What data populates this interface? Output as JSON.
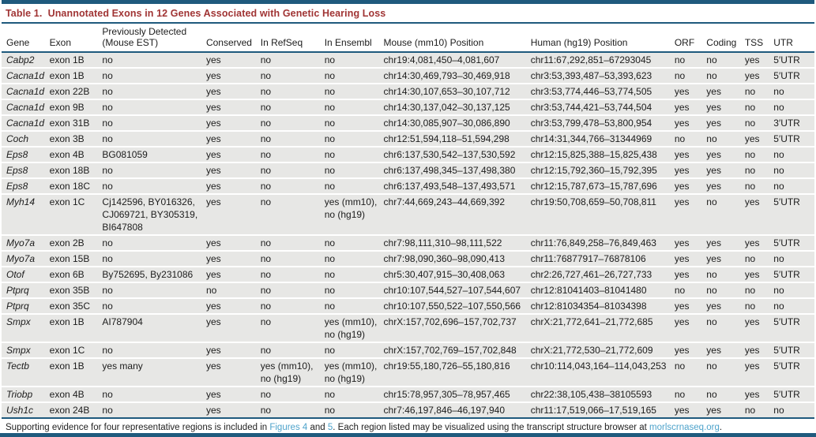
{
  "title": "Table 1.  Unannotated Exons in 12 Genes Associated with Genetic Hearing Loss",
  "colors": {
    "accent_navy": "#1f5a7d",
    "title_red": "#a03434",
    "link_blue": "#4ea3cb",
    "row_gray": "#e7e7e5"
  },
  "table": {
    "columns": [
      "Gene",
      "Exon",
      "Previously Detected\n(Mouse EST)",
      "Conserved",
      "In RefSeq",
      "In Ensembl",
      "Mouse (mm10) Position",
      "Human (hg19) Position",
      "ORF",
      "Coding",
      "TSS",
      "UTR"
    ],
    "rows": [
      [
        "Cabp2",
        "exon 1B",
        "no",
        "yes",
        "no",
        "no",
        "chr19:4,081,450–4,081,607",
        "chr11:67,292,851–67293045",
        "no",
        "no",
        "yes",
        "5′UTR"
      ],
      [
        "Cacna1d",
        "exon 1B",
        "no",
        "yes",
        "no",
        "no",
        "chr14:30,469,793–30,469,918",
        "chr3:53,393,487–53,393,623",
        "no",
        "no",
        "yes",
        "5′UTR"
      ],
      [
        "Cacna1d",
        "exon 22B",
        "no",
        "yes",
        "no",
        "no",
        "chr14:30,107,653–30,107,712",
        "chr3:53,774,446–53,774,505",
        "yes",
        "yes",
        "no",
        "no"
      ],
      [
        "Cacna1d",
        "exon 9B",
        "no",
        "yes",
        "no",
        "no",
        "chr14:30,137,042–30,137,125",
        "chr3:53,744,421–53,744,504",
        "yes",
        "yes",
        "no",
        "no"
      ],
      [
        "Cacna1d",
        "exon 31B",
        "no",
        "yes",
        "no",
        "no",
        "chr14:30,085,907–30,086,890",
        "chr3:53,799,478–53,800,954",
        "yes",
        "yes",
        "no",
        "3′UTR"
      ],
      [
        "Coch",
        "exon 3B",
        "no",
        "yes",
        "no",
        "no",
        "chr12:51,594,118–51,594,298",
        "chr14:31,344,766–31344969",
        "no",
        "no",
        "yes",
        "5′UTR"
      ],
      [
        "Eps8",
        "exon 4B",
        "BG081059",
        "yes",
        "no",
        "no",
        "chr6:137,530,542–137,530,592",
        "chr12:15,825,388–15,825,438",
        "yes",
        "yes",
        "no",
        "no"
      ],
      [
        "Eps8",
        "exon 18B",
        "no",
        "yes",
        "no",
        "no",
        "chr6:137,498,345–137,498,380",
        "chr12:15,792,360–15,792,395",
        "yes",
        "yes",
        "no",
        "no"
      ],
      [
        "Eps8",
        "exon 18C",
        "no",
        "yes",
        "no",
        "no",
        "chr6:137,493,548–137,493,571",
        "chr12:15,787,673–15,787,696",
        "yes",
        "yes",
        "no",
        "no"
      ],
      [
        "Myh14",
        "exon 1C",
        "Cj142596, BY016326, CJ069721, BY305319, BI647808",
        "yes",
        "no",
        "yes (mm10), no (hg19)",
        "chr7:44,669,243–44,669,392",
        "chr19:50,708,659–50,708,811",
        "yes",
        "no",
        "yes",
        "5′UTR"
      ],
      [
        "Myo7a",
        "exon 2B",
        "no",
        "yes",
        "no",
        "no",
        "chr7:98,111,310–98,111,522",
        "chr11:76,849,258–76,849,463",
        "yes",
        "yes",
        "yes",
        "5′UTR"
      ],
      [
        "Myo7a",
        "exon 15B",
        "no",
        "yes",
        "no",
        "no",
        "chr7:98,090,360–98,090,413",
        "chr11:76877917–76878106",
        "yes",
        "yes",
        "no",
        "no"
      ],
      [
        "Otof",
        "exon 6B",
        "By752695, By231086",
        "yes",
        "no",
        "no",
        "chr5:30,407,915–30,408,063",
        "chr2:26,727,461–26,727,733",
        "yes",
        "no",
        "yes",
        "5′UTR"
      ],
      [
        "Ptprq",
        "exon 35B",
        "no",
        "no",
        "no",
        "no",
        "chr10:107,544,527–107,544,607",
        "chr12:81041403–81041480",
        "no",
        "no",
        "no",
        "no"
      ],
      [
        "Ptprq",
        "exon 35C",
        "no",
        "yes",
        "no",
        "no",
        "chr10:107,550,522–107,550,566",
        "chr12:81034354–81034398",
        "yes",
        "yes",
        "no",
        "no"
      ],
      [
        "Smpx",
        "exon 1B",
        "AI787904",
        "yes",
        "no",
        "yes (mm10), no (hg19)",
        "chrX:157,702,696–157,702,737",
        "chrX:21,772,641–21,772,685",
        "yes",
        "no",
        "yes",
        "5′UTR"
      ],
      [
        "Smpx",
        "exon 1C",
        "no",
        "yes",
        "no",
        "no",
        "chrX:157,702,769–157,702,848",
        "chrX:21,772,530–21,772,609",
        "yes",
        "yes",
        "yes",
        "5′UTR"
      ],
      [
        "Tectb",
        "exon 1B",
        "yes many",
        "yes",
        "yes (mm10), no (hg19)",
        "yes (mm10), no (hg19)",
        "chr19:55,180,726–55,180,816",
        "chr10:114,043,164–114,043,253",
        "no",
        "no",
        "yes",
        "5′UTR"
      ],
      [
        "Triobp",
        "exon 4B",
        "no",
        "yes",
        "no",
        "no",
        "chr15:78,957,305–78,957,465",
        "chr22:38,105,438–38105593",
        "no",
        "no",
        "yes",
        "5′UTR"
      ],
      [
        "Ush1c",
        "exon 24B",
        "no",
        "yes",
        "no",
        "no",
        "chr7:46,197,846–46,197,940",
        "chr11:17,519,066–17,519,165",
        "yes",
        "yes",
        "no",
        "no"
      ]
    ]
  },
  "footer": {
    "segments": [
      {
        "text": "Supporting evidence for four representative regions is included in ",
        "link": false
      },
      {
        "text": "Figures 4",
        "link": true,
        "name": "footnote-link-figure-4"
      },
      {
        "text": " and ",
        "link": false
      },
      {
        "text": "5",
        "link": true,
        "name": "footnote-link-figure-5"
      },
      {
        "text": ". Each region listed may be visualized using the transcript structure browser at ",
        "link": false
      },
      {
        "text": "morlscrnaseq.org",
        "link": true,
        "name": "footnote-link-morlscrnaseq"
      },
      {
        "text": ".",
        "link": false
      }
    ]
  }
}
